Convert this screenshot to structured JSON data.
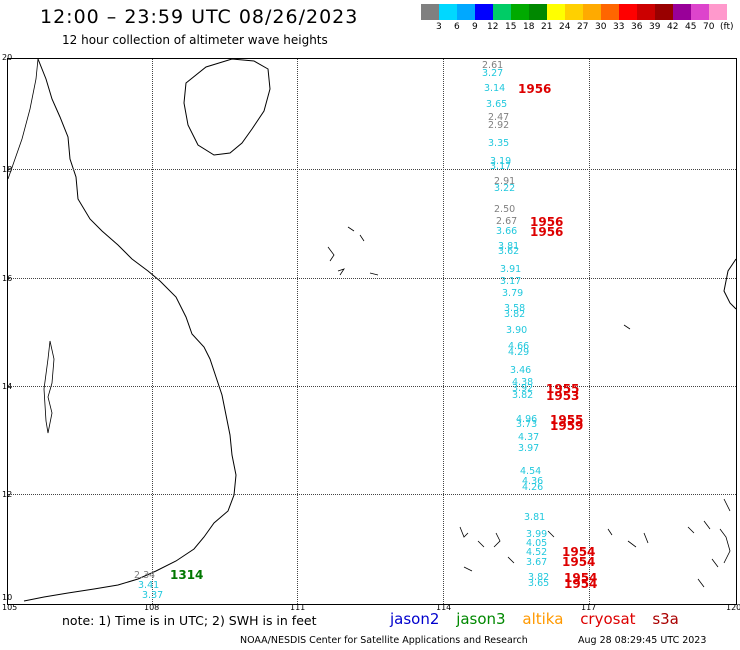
{
  "header": {
    "title": "12:00 – 23:59 UTC 08/26/2023",
    "subtitle": "12 hour collection of altimeter wave heights"
  },
  "scale": {
    "colors": [
      "#808080",
      "#00d8ff",
      "#00a8ff",
      "#0000ff",
      "#00cc66",
      "#00aa00",
      "#008800",
      "#ffff00",
      "#ffd000",
      "#ffaa00",
      "#ff6600",
      "#ff0000",
      "#cc0000",
      "#990000",
      "#990099",
      "#dd44cc",
      "#ff99cc",
      "#000000"
    ],
    "labels": [
      "3",
      "6",
      "9",
      "12",
      "15",
      "18",
      "21",
      "24",
      "27",
      "30",
      "33",
      "36",
      "39",
      "42",
      "45",
      "70",
      "(ft)"
    ]
  },
  "axes": {
    "lat_labels": [
      "20",
      "18",
      "16",
      "14",
      "12",
      "10"
    ],
    "lon_labels": [
      "105",
      "108",
      "111",
      "114",
      "117",
      "120"
    ]
  },
  "observations": [
    {
      "v": "2.61",
      "c": "#808080"
    },
    {
      "v": "3.27",
      "c": "#22c8dd"
    },
    {
      "v": "3.14",
      "c": "#22c8dd"
    },
    {
      "v": "3.65",
      "c": "#22c8dd"
    },
    {
      "v": "2.47",
      "c": "#808080"
    },
    {
      "v": "2.92",
      "c": "#808080"
    },
    {
      "v": "3.35",
      "c": "#22c8dd"
    },
    {
      "v": "3.19",
      "c": "#22c8dd"
    },
    {
      "v": "3.17",
      "c": "#22c8dd"
    },
    {
      "v": "2.91",
      "c": "#808080"
    },
    {
      "v": "3.22",
      "c": "#22c8dd"
    },
    {
      "v": "2.50",
      "c": "#808080"
    },
    {
      "v": "2.67",
      "c": "#808080"
    },
    {
      "v": "3.66",
      "c": "#22c8dd"
    },
    {
      "v": "3.81",
      "c": "#22c8dd"
    },
    {
      "v": "3.62",
      "c": "#22c8dd"
    },
    {
      "v": "3.91",
      "c": "#22c8dd"
    },
    {
      "v": "3.17",
      "c": "#22c8dd"
    },
    {
      "v": "3.79",
      "c": "#22c8dd"
    },
    {
      "v": "3.58",
      "c": "#22c8dd"
    },
    {
      "v": "3.82",
      "c": "#22c8dd"
    },
    {
      "v": "3.90",
      "c": "#22c8dd"
    },
    {
      "v": "4.66",
      "c": "#22c8dd"
    },
    {
      "v": "4.29",
      "c": "#22c8dd"
    },
    {
      "v": "3.46",
      "c": "#22c8dd"
    },
    {
      "v": "4.38",
      "c": "#22c8dd"
    },
    {
      "v": "3.92",
      "c": "#22c8dd"
    },
    {
      "v": "3.82",
      "c": "#22c8dd"
    },
    {
      "v": "4.96",
      "c": "#22c8dd"
    },
    {
      "v": "3.73",
      "c": "#22c8dd"
    },
    {
      "v": "4.37",
      "c": "#22c8dd"
    },
    {
      "v": "3.97",
      "c": "#22c8dd"
    },
    {
      "v": "4.54",
      "c": "#22c8dd"
    },
    {
      "v": "4.36",
      "c": "#22c8dd"
    },
    {
      "v": "4.26",
      "c": "#22c8dd"
    },
    {
      "v": "3.81",
      "c": "#22c8dd"
    },
    {
      "v": "3.99",
      "c": "#22c8dd"
    },
    {
      "v": "4.05",
      "c": "#22c8dd"
    },
    {
      "v": "4.52",
      "c": "#22c8dd"
    },
    {
      "v": "3.67",
      "c": "#22c8dd"
    },
    {
      "v": "3.82",
      "c": "#22c8dd"
    },
    {
      "v": "3.65",
      "c": "#22c8dd"
    },
    {
      "v": "2.34",
      "c": "#808080"
    },
    {
      "v": "3.41",
      "c": "#22c8dd"
    },
    {
      "v": "3.37",
      "c": "#22c8dd"
    }
  ],
  "pass_times": [
    {
      "v": "1956",
      "c": "#dd0000"
    },
    {
      "v": "1956",
      "c": "#dd0000"
    },
    {
      "v": "1956",
      "c": "#dd0000"
    },
    {
      "v": "1955",
      "c": "#dd0000"
    },
    {
      "v": "1953",
      "c": "#dd0000"
    },
    {
      "v": "1955",
      "c": "#dd0000"
    },
    {
      "v": "1959",
      "c": "#dd0000"
    },
    {
      "v": "1954",
      "c": "#dd0000"
    },
    {
      "v": "1954",
      "c": "#dd0000"
    },
    {
      "v": "1954",
      "c": "#dd0000"
    },
    {
      "v": "1954",
      "c": "#dd0000"
    },
    {
      "v": "1314",
      "c": "#007700"
    }
  ],
  "footer": {
    "note": "note:  1) Time is in UTC;  2) SWH is in feet",
    "satellites": [
      {
        "name": "jason2",
        "color": "#0000cc"
      },
      {
        "name": "jason3",
        "color": "#008800"
      },
      {
        "name": "altika",
        "color": "#ff9900"
      },
      {
        "name": "cryosat",
        "color": "#dd0000"
      },
      {
        "name": "s3a",
        "color": "#aa0000"
      }
    ],
    "credit": "NOAA/NESDIS Center for Satellite Applications and Research",
    "timestamp": "Aug 28 08:29:45 UTC 2023"
  }
}
